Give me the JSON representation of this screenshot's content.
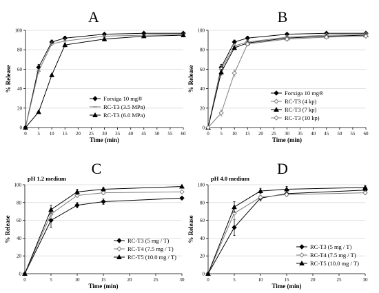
{
  "chart_data": [
    {
      "panel": "A",
      "type": "line",
      "xlabel": "Time (min)",
      "ylabel": "% Release",
      "xlim": [
        0,
        60
      ],
      "ylim": [
        0,
        100
      ],
      "xticks": [
        0,
        5,
        10,
        15,
        20,
        25,
        30,
        35,
        40,
        45,
        50,
        55,
        60
      ],
      "yticks": [
        0,
        20,
        40,
        60,
        80,
        100
      ],
      "grid": true,
      "legend_position": "bottom-right",
      "series": [
        {
          "name": "Forxiga 10 mg®",
          "color": "#000000",
          "marker": "diamond",
          "x": [
            0,
            5,
            10,
            15,
            30,
            45,
            60
          ],
          "y": [
            0,
            62,
            88,
            92,
            96,
            97,
            97
          ],
          "err": [
            0,
            3,
            2,
            2,
            1,
            1,
            1
          ]
        },
        {
          "name": "RC-T3 (3.5 MPa)",
          "color": "#7f7f7f",
          "marker": "dash",
          "x": [
            0,
            5,
            10,
            15,
            30,
            45,
            60
          ],
          "y": [
            0,
            58,
            86,
            89,
            94,
            95,
            96
          ],
          "err": [
            0,
            2,
            2,
            2,
            1,
            1,
            1
          ]
        },
        {
          "name": "RC-T3 (6.0 MPa)",
          "color": "#000000",
          "marker": "triangle",
          "x": [
            0,
            5,
            10,
            15,
            30,
            45,
            60
          ],
          "y": [
            0,
            16,
            54,
            85,
            91,
            94,
            95
          ],
          "err": [
            0,
            1,
            1,
            2,
            2,
            1,
            1
          ]
        }
      ]
    },
    {
      "panel": "B",
      "type": "line",
      "xlabel": "Time (min)",
      "ylabel": "% Release",
      "xlim": [
        0,
        60
      ],
      "ylim": [
        0,
        100
      ],
      "xticks": [
        0,
        5,
        10,
        15,
        20,
        25,
        30,
        35,
        40,
        45,
        50,
        55,
        60
      ],
      "yticks": [
        0,
        20,
        40,
        60,
        80,
        100
      ],
      "grid": true,
      "legend_position": "bottom-right",
      "series": [
        {
          "name": "Forxiga 10 mg®",
          "color": "#000000",
          "marker": "diamond",
          "x": [
            0,
            5,
            10,
            15,
            30,
            45,
            60
          ],
          "y": [
            0,
            62,
            88,
            92,
            96,
            97,
            97
          ],
          "err": [
            0,
            3,
            2,
            2,
            1,
            1,
            1
          ]
        },
        {
          "name": "RC-T3 (4 kp)",
          "color": "#7f7f7f",
          "marker": "diamond-open",
          "x": [
            0,
            5,
            10,
            15,
            30,
            45,
            60
          ],
          "y": [
            0,
            60,
            84,
            88,
            93,
            95,
            96
          ],
          "err": [
            0,
            4,
            2,
            2,
            1,
            1,
            1
          ]
        },
        {
          "name": "RC-T3 (7 kp)",
          "color": "#000000",
          "marker": "triangle",
          "x": [
            0,
            5,
            10,
            15,
            30,
            45,
            60
          ],
          "y": [
            0,
            57,
            82,
            87,
            92,
            94,
            95
          ],
          "err": [
            0,
            3,
            2,
            2,
            1,
            1,
            1
          ]
        },
        {
          "name": "RC-T3 (10 kp)",
          "color": "#7f7f7f",
          "marker": "diamond-open",
          "x": [
            0,
            5,
            10,
            15,
            30,
            45,
            60
          ],
          "y": [
            0,
            15,
            56,
            86,
            91,
            93,
            94
          ],
          "err": [
            0,
            3,
            3,
            2,
            2,
            1,
            1
          ]
        }
      ]
    },
    {
      "panel": "C",
      "type": "line",
      "annotation": "pH 1.2 medium",
      "xlabel": "Time (min)",
      "ylabel": "% Release",
      "xlim": [
        0,
        30
      ],
      "ylim": [
        0,
        100
      ],
      "xticks": [
        0,
        5,
        10,
        15,
        20,
        25,
        30
      ],
      "yticks": [
        0,
        20,
        40,
        60,
        80,
        100
      ],
      "grid": true,
      "legend_position": "bottom-right",
      "series": [
        {
          "name": "RC-T3 (5 mg / T)",
          "color": "#000000",
          "marker": "diamond",
          "x": [
            0,
            5,
            10,
            15,
            30
          ],
          "y": [
            0,
            60,
            77,
            81,
            85
          ],
          "err": [
            0,
            8,
            3,
            3,
            1
          ]
        },
        {
          "name": "RC-T4 (7.5 mg / T)",
          "color": "#7f7f7f",
          "marker": "diamond-open",
          "x": [
            0,
            5,
            10,
            15,
            30
          ],
          "y": [
            0,
            67,
            88,
            91,
            92
          ],
          "err": [
            0,
            5,
            2,
            2,
            1
          ]
        },
        {
          "name": "RC-T5 (10.0 mg / T)",
          "color": "#000000",
          "marker": "triangle",
          "x": [
            0,
            5,
            10,
            15,
            30
          ],
          "y": [
            0,
            72,
            92,
            95,
            98
          ],
          "err": [
            0,
            5,
            3,
            2,
            1
          ]
        }
      ]
    },
    {
      "panel": "D",
      "type": "line",
      "annotation": "pH 4.0 medium",
      "xlabel": "Time (min)",
      "ylabel": "% Release",
      "xlim": [
        0,
        30
      ],
      "ylim": [
        0,
        100
      ],
      "xticks": [
        0,
        5,
        10,
        15,
        20,
        25,
        30
      ],
      "yticks": [
        0,
        20,
        40,
        60,
        80,
        100
      ],
      "grid": true,
      "legend_position": "bottom-right",
      "series": [
        {
          "name": "RC-T3 (5 mg / T)",
          "color": "#000000",
          "marker": "diamond",
          "x": [
            0,
            5,
            10,
            15,
            30
          ],
          "y": [
            0,
            52,
            85,
            90,
            94
          ],
          "err": [
            0,
            9,
            3,
            3,
            2
          ]
        },
        {
          "name": "RC-T4 (7.5 mg / T)",
          "color": "#7f7f7f",
          "marker": "diamond-open",
          "x": [
            0,
            5,
            10,
            15,
            30
          ],
          "y": [
            0,
            68,
            86,
            89,
            91
          ],
          "err": [
            0,
            7,
            2,
            2,
            2
          ]
        },
        {
          "name": "RC-T5 (10.0 mg / T)",
          "color": "#000000",
          "marker": "triangle",
          "x": [
            0,
            5,
            10,
            15,
            30
          ],
          "y": [
            0,
            75,
            93,
            95,
            97
          ],
          "err": [
            0,
            6,
            3,
            3,
            2
          ]
        }
      ]
    }
  ]
}
